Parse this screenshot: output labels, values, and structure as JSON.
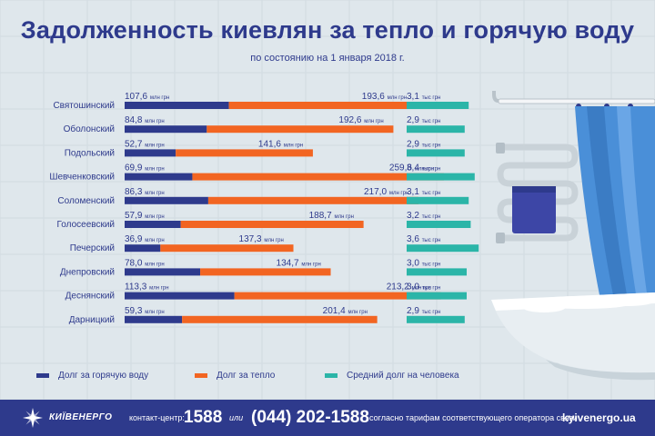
{
  "title": "Задолженность киевлян за тепло и горячую воду",
  "subtitle": "по состоянию на 1 января 2018 г.",
  "chart_data": {
    "type": "bar",
    "orientation": "horizontal",
    "categories": [
      "Святошинский",
      "Оболонский",
      "Подольский",
      "Шевченковский",
      "Соломенский",
      "Голосеевский",
      "Печерский",
      "Днепровский",
      "Деснянский",
      "Дарницкий"
    ],
    "series": [
      {
        "name": "Долг за горячую воду",
        "values": [
          107.6,
          84.8,
          52.7,
          69.9,
          86.3,
          57.9,
          36.9,
          78.0,
          113.3,
          59.3
        ],
        "labels": [
          "107,6",
          "84,8",
          "52,7",
          "69,9",
          "86,3",
          "57,9",
          "36,9",
          "78,0",
          "113,3",
          "59,3"
        ],
        "unit": "млн грн",
        "color": "#2e3a8c"
      },
      {
        "name": "Долг за тепло",
        "values": [
          193.6,
          192.6,
          141.6,
          259.6,
          217.0,
          188.7,
          137.3,
          134.7,
          213.2,
          201.4
        ],
        "labels": [
          "193,6",
          "192,6",
          "141,6",
          "259,6",
          "217,0",
          "188,7",
          "137,3",
          "134,7",
          "213,2",
          "201,4"
        ],
        "unit": "млн грн",
        "color": "#f26522"
      },
      {
        "name": "Средний долг на человека",
        "values": [
          3.1,
          2.9,
          2.9,
          3.4,
          3.1,
          3.2,
          3.6,
          3.0,
          3.0,
          2.9
        ],
        "labels": [
          "3,1",
          "2,9",
          "2,9",
          "3,4",
          "3,1",
          "3,2",
          "3,6",
          "3,0",
          "3,0",
          "2,9"
        ],
        "unit": "тыс грн",
        "color": "#2bb5a8"
      }
    ],
    "legend_position": "bottom"
  },
  "legend": [
    "Долг за горячую воду",
    "Долг за тепло",
    "Средний долг на человека"
  ],
  "footer": {
    "brand": "КИЇВЕНЕРГО",
    "contact_label": "контакт-центр:",
    "short_number": "1588",
    "or": "или",
    "long_number": "(044) 202-1588",
    "note": "согласно тарифам соответствующего оператора связи",
    "site": "kyivenergo.ua"
  }
}
